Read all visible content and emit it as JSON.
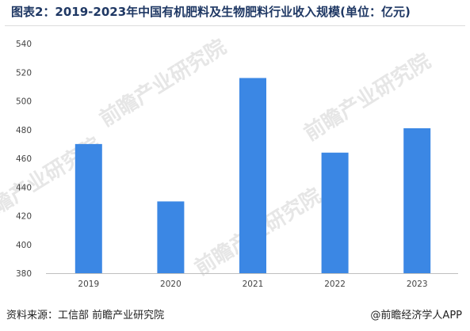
{
  "title": "图表2：2019-2023年中国有机肥料及生物肥料行业收入规模(单位：亿元)",
  "source": "资料来源：工信部 前瞻产业研究院",
  "brand": "@前瞻经济学人APP",
  "watermark": "前瞻产业研究院",
  "colors": {
    "bar": "#3b87e4",
    "axis": "#bfbfbf",
    "tick_label": "#444444",
    "title": "#1f3864",
    "watermark": "#e6e6e6"
  },
  "chart_data": {
    "type": "bar",
    "title": "图表2：2019-2023年中国有机肥料及生物肥料行业收入规模(单位：亿元)",
    "categories": [
      "2019",
      "2020",
      "2021",
      "2022",
      "2023"
    ],
    "values": [
      470,
      430,
      516,
      464,
      481
    ],
    "xlabel": "",
    "ylabel": "",
    "ylim": [
      380,
      540
    ],
    "yticks": [
      380,
      400,
      420,
      440,
      460,
      480,
      500,
      520,
      540
    ],
    "grid": false,
    "legend": "none"
  }
}
